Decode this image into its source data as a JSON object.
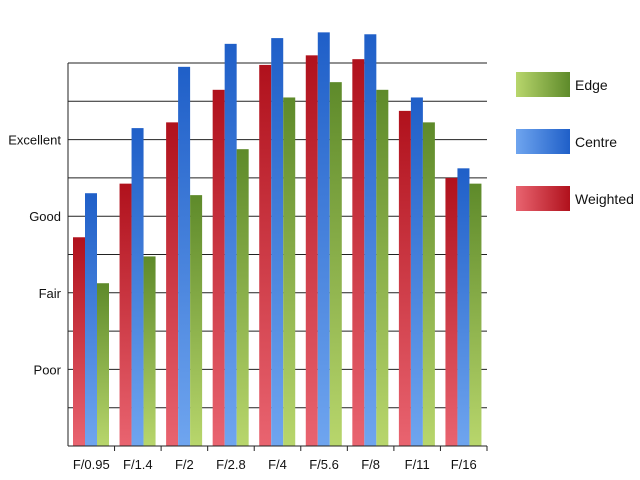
{
  "chart_data": {
    "type": "bar",
    "title": "",
    "xlabel": "",
    "ylabel": "",
    "categories": [
      "F/0.95",
      "F/1.4",
      "F/2",
      "F/2.8",
      "F/4",
      "F/5.6",
      "F/8",
      "F/11",
      "F/16"
    ],
    "y_ticks": [
      {
        "label": "Poor",
        "value": 2
      },
      {
        "label": "Fair",
        "value": 4
      },
      {
        "label": "Good",
        "value": 6
      },
      {
        "label": "Excellent",
        "value": 8
      }
    ],
    "ylim": [
      0,
      10
    ],
    "grid": true,
    "legend_position": "right",
    "series": [
      {
        "name": "Weighted",
        "color_top": "#b0111c",
        "color_bottom": "#e96470",
        "values": [
          5.45,
          6.85,
          8.45,
          9.3,
          9.95,
          10.2,
          10.1,
          8.75,
          7.0
        ]
      },
      {
        "name": "Centre",
        "color_top": "#1f5fc8",
        "color_bottom": "#6fa5ef",
        "values": [
          6.6,
          8.3,
          9.9,
          10.5,
          10.65,
          10.8,
          10.75,
          9.1,
          7.25
        ]
      },
      {
        "name": "Edge",
        "color_top": "#5e8a2a",
        "color_bottom": "#b8d66c",
        "values": [
          4.25,
          4.95,
          6.55,
          7.75,
          9.1,
          9.5,
          9.3,
          8.45,
          6.85
        ]
      }
    ],
    "legend_order": [
      "Edge",
      "Centre",
      "Weighted"
    ]
  }
}
